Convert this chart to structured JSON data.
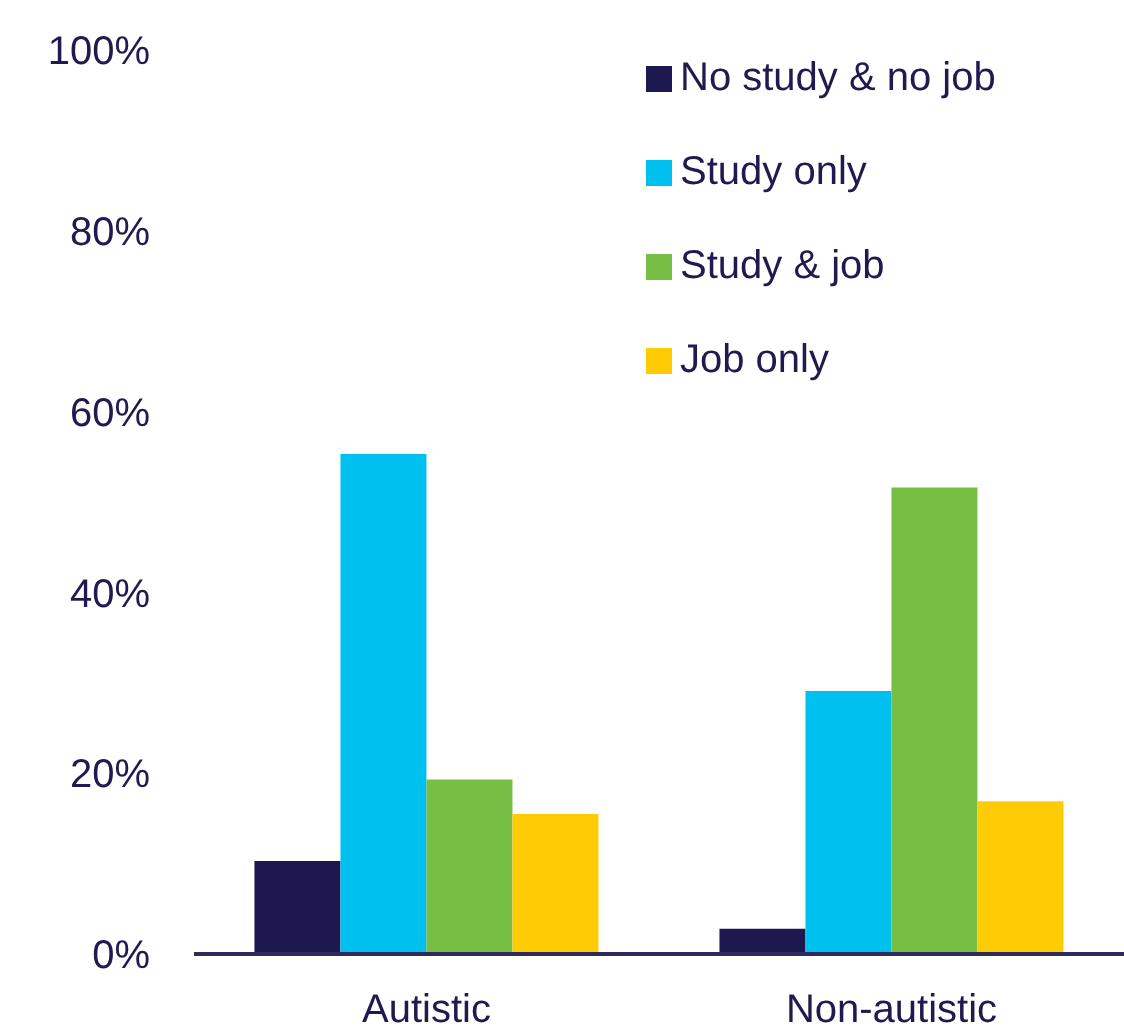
{
  "chart_data": {
    "type": "bar",
    "categories": [
      "Autistic",
      "Non-autistic"
    ],
    "series": [
      {
        "name": "No study & no job",
        "color": "#1e1850",
        "values": [
          10.3,
          2.8
        ]
      },
      {
        "name": "Study only",
        "color": "#00c0f0",
        "values": [
          55.3,
          29.1
        ]
      },
      {
        "name": "Study & job",
        "color": "#76bf44",
        "values": [
          19.3,
          51.6
        ]
      },
      {
        "name": "Job only",
        "color": "#ffcb05",
        "values": [
          15.5,
          16.9
        ]
      }
    ],
    "ylim": [
      0,
      100
    ],
    "yticks": [
      {
        "value": 0,
        "label": "0%"
      },
      {
        "value": 20,
        "label": "20%"
      },
      {
        "value": 40,
        "label": "40%"
      },
      {
        "value": 60,
        "label": "60%"
      },
      {
        "value": 80,
        "label": "80%"
      },
      {
        "value": 100,
        "label": "100%"
      }
    ],
    "legend": "top right"
  }
}
